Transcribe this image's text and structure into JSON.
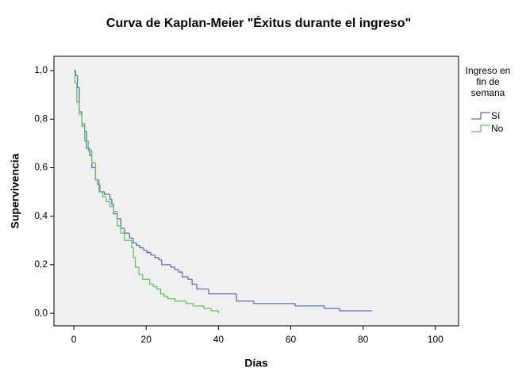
{
  "chart_data": {
    "type": "step",
    "title": "Curva de Kaplan-Meier \"Éxitus durante el ingreso\"",
    "x_label": "Días",
    "y_label": "Supervivencia",
    "legend_title": "Ingreso en fin de semana",
    "legend_position": "right",
    "xlim": [
      -5.5,
      106.4
    ],
    "ylim": [
      -0.052,
      1.059
    ],
    "xticks": [
      0,
      20,
      40,
      60,
      80,
      100
    ],
    "yticks": [
      {
        "value": 0.0,
        "label": "0,0"
      },
      {
        "value": 0.2,
        "label": "0,2"
      },
      {
        "value": 0.4,
        "label": "0,4"
      },
      {
        "value": 0.6,
        "label": "0,6"
      },
      {
        "value": 0.8,
        "label": "0,8"
      },
      {
        "value": 1.0,
        "label": "1,0"
      }
    ],
    "background": "#f0f0f0",
    "series": [
      {
        "name": "Sí",
        "color": "#5a6fb5",
        "x": [
          0,
          0.5,
          1,
          1.5,
          2.2,
          3,
          3.5,
          4.4,
          5,
          6,
          6.6,
          7.2,
          8.5,
          10,
          10.5,
          11,
          12,
          13,
          14,
          15.4,
          16.4,
          17.3,
          18.2,
          19.3,
          20.2,
          21.3,
          22.4,
          23.5,
          24.3,
          26.8,
          27.9,
          29,
          30,
          31.6,
          32.7,
          34,
          37.3,
          45,
          49.8,
          61.2,
          69.3,
          73.5,
          82.5
        ],
        "values": [
          1.0,
          0.98,
          0.93,
          0.83,
          0.78,
          0.75,
          0.68,
          0.65,
          0.6,
          0.55,
          0.53,
          0.5,
          0.49,
          0.47,
          0.45,
          0.41,
          0.39,
          0.35,
          0.33,
          0.31,
          0.29,
          0.28,
          0.27,
          0.26,
          0.25,
          0.24,
          0.23,
          0.22,
          0.2,
          0.19,
          0.18,
          0.17,
          0.15,
          0.14,
          0.12,
          0.1,
          0.08,
          0.05,
          0.04,
          0.03,
          0.02,
          0.01,
          0.01
        ]
      },
      {
        "name": "No",
        "color": "#5fc85f",
        "x": [
          0,
          0.3,
          0.8,
          1.5,
          2.2,
          3,
          4,
          5,
          6,
          7,
          8,
          9,
          10,
          11,
          12,
          13,
          14,
          16,
          16.5,
          17,
          18,
          19,
          21,
          22,
          23,
          24,
          25,
          26,
          28,
          31,
          33,
          36,
          38,
          40
        ],
        "values": [
          1.0,
          0.95,
          0.87,
          0.82,
          0.77,
          0.71,
          0.67,
          0.62,
          0.55,
          0.5,
          0.48,
          0.46,
          0.44,
          0.42,
          0.36,
          0.33,
          0.3,
          0.27,
          0.23,
          0.19,
          0.16,
          0.14,
          0.12,
          0.11,
          0.1,
          0.08,
          0.07,
          0.06,
          0.05,
          0.04,
          0.03,
          0.02,
          0.01,
          0.0
        ]
      }
    ]
  }
}
